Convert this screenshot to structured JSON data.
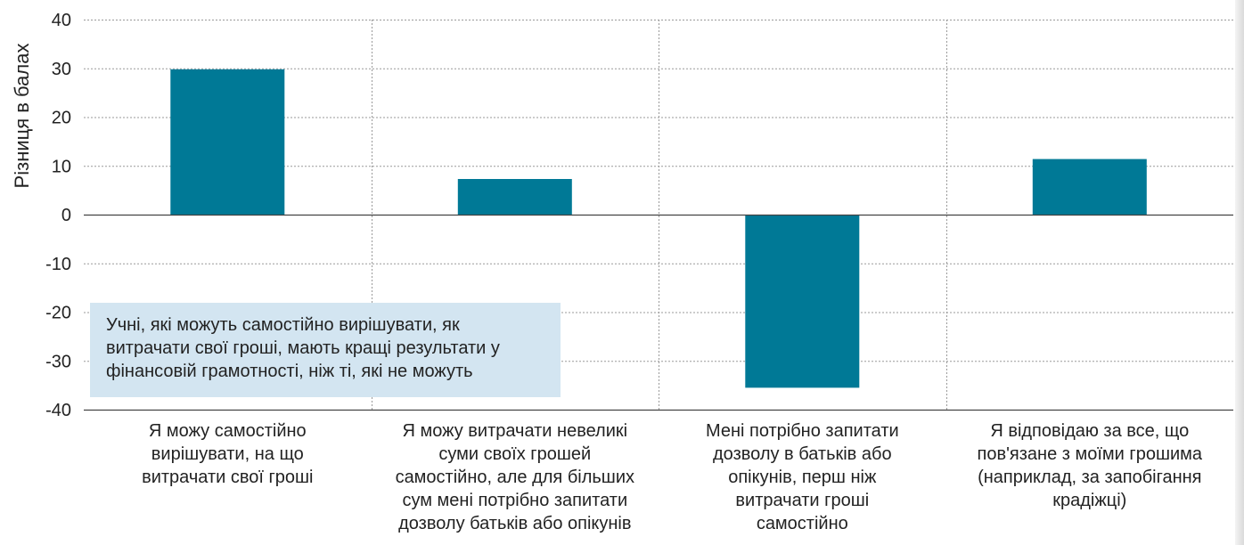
{
  "chart_data": {
    "type": "bar",
    "title": "",
    "xlabel": "",
    "ylabel": "Різниця в балах",
    "ylim": [
      -40,
      40
    ],
    "yticks": [
      40,
      30,
      20,
      10,
      0,
      -10,
      -20,
      -30,
      -40
    ],
    "grid": true,
    "categories": [
      "Я можу самостійно вирішувати, на що витрачати свої гроші",
      "Я можу витрачати невеликі суми своїх грошей самостійно, але для більших сум мені потрібно запитати дозволу батьків або опікунів",
      "Мені потрібно запитати дозволу в батьків або опікунів, перш ніж витрачати гроші самостійно",
      "Я відповідаю за все, що пов'язане з моїми грошима (наприклад, за запобігання крадіжці)"
    ],
    "category_lines": [
      [
        "Я можу самостійно",
        "вирішувати, на що",
        "витрачати свої гроші"
      ],
      [
        "Я можу витрачати невеликі",
        "суми своїх грошей",
        "самостійно, але для більших",
        "сум мені потрібно запитати",
        "дозволу батьків або опікунів"
      ],
      [
        "Мені потрібно запитати",
        "дозволу в батьків або",
        "опікунів, перш ніж",
        "витрачати гроші",
        "самостійно"
      ],
      [
        "Я відповідаю за все, що",
        "пов'язане з моїми грошима",
        "(наприклад, за запобігання",
        "крадіжці)"
      ]
    ],
    "values": [
      29.8,
      7.3,
      -35.5,
      11.4
    ],
    "bar_color": "#007996",
    "annotation": {
      "lines": [
        "Учні, які можуть самостійно вирішувати, як",
        "витрачати свої гроші, мають кращі результати у",
        "фінансовій грамотності, ніж ті, які не можуть"
      ],
      "background": "#d3e5f1"
    }
  }
}
